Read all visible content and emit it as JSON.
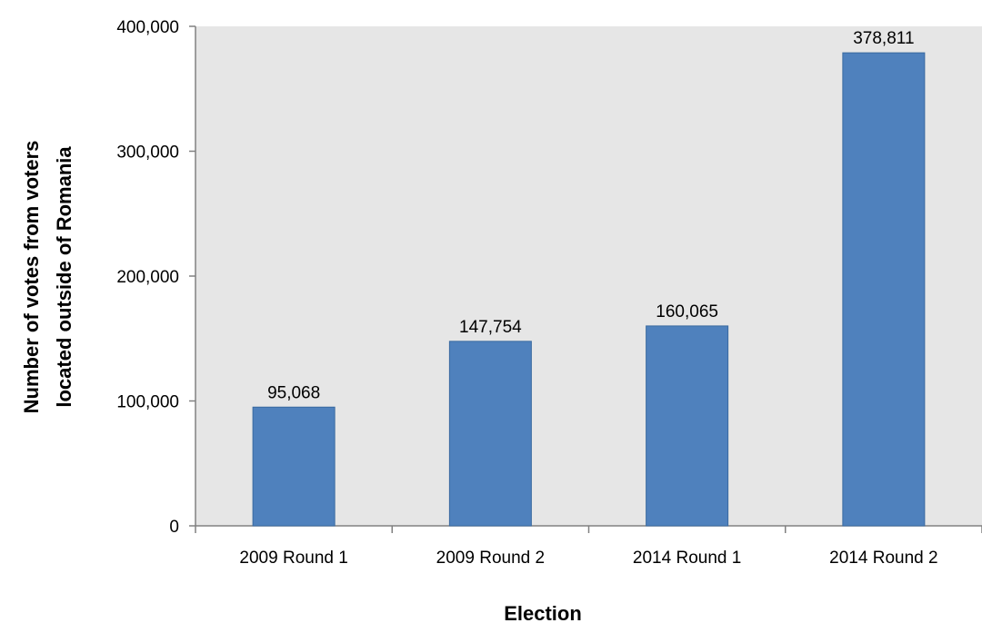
{
  "chart_data": {
    "type": "bar",
    "categories": [
      "2009 Round 1",
      "2009 Round 2",
      "2014 Round 1",
      "2014 Round 2"
    ],
    "values": [
      95068,
      147754,
      160065,
      378811
    ],
    "data_labels": [
      "95,068",
      "147,754",
      "160,065",
      "378,811"
    ],
    "xlabel": "Election",
    "ylabel_lines": [
      "Number of votes from voters",
      "located outside of Romania"
    ],
    "ylim": [
      0,
      400000
    ],
    "yticks": [
      0,
      100000,
      200000,
      300000,
      400000
    ],
    "ytick_labels": [
      "0",
      "100,000",
      "200,000",
      "300,000",
      "400,000"
    ],
    "grid": false,
    "legend": "none",
    "colors": {
      "bar": "#4f81bd",
      "bar_border": "#3a6aa0",
      "plot_background": "#e6e6e6",
      "axis": "#808080"
    }
  }
}
